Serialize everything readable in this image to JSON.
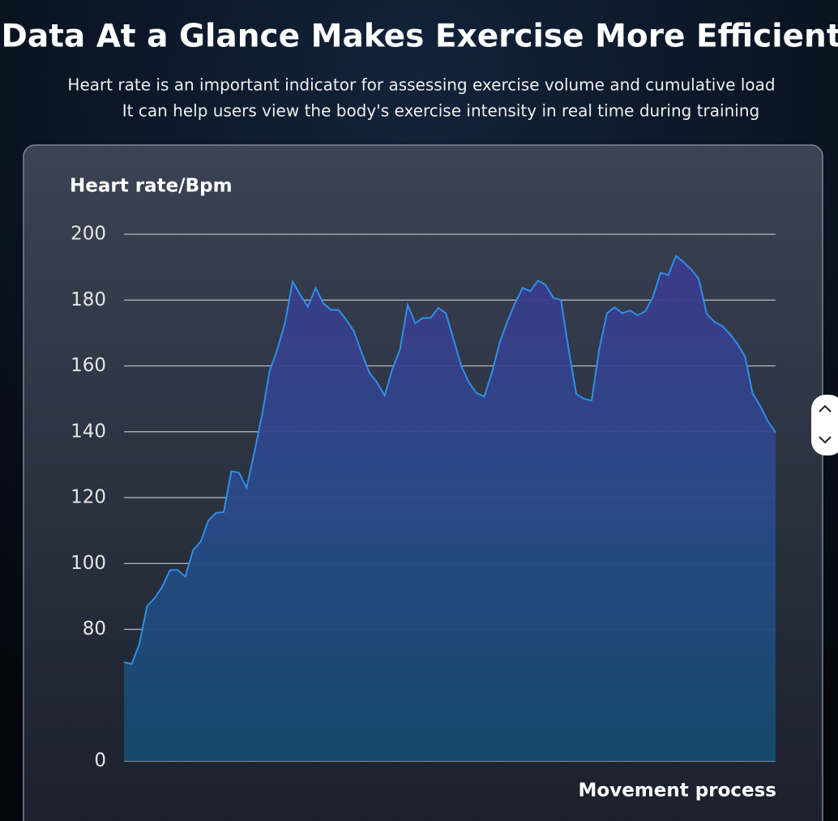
{
  "chart_data": {
    "type": "area",
    "title": "Data At a Glance Makes Exercise More Efficient",
    "subtitle": [
      "Heart rate is an important indicator for assessing exercise volume and cumulative load",
      "It can help users view the body's exercise intensity in real time during training"
    ],
    "ylabel": "Heart rate/Bpm",
    "xlabel": "Movement process",
    "values": [
      60,
      59,
      71,
      87,
      89.5,
      93,
      98,
      98,
      96,
      104,
      106.6,
      113,
      115.4,
      115.6,
      128,
      127.6,
      123,
      133.7,
      145,
      158.5,
      165,
      173,
      185.6,
      181.5,
      178,
      183.7,
      179,
      177,
      177,
      174,
      170.5,
      164,
      158,
      155,
      151,
      159,
      165,
      178.5,
      173,
      174.6,
      174.6,
      177.6,
      176,
      168,
      160,
      155,
      151.7,
      150.7,
      158,
      167,
      173.4,
      179,
      183.7,
      182.7,
      185.9,
      184.6,
      180.7,
      180,
      165,
      151.5,
      150,
      149.5,
      165,
      176,
      177.8,
      176,
      176.8,
      175.4,
      176.6,
      181,
      188.3,
      187.6,
      193.4,
      191.5,
      189.3,
      186.3,
      175.9,
      173.4,
      172.2,
      169.8,
      166.8,
      162.9,
      151.7,
      147.8,
      143.2,
      139.8
    ],
    "color": "#2f8fe8",
    "ylim": [
      0,
      200
    ],
    "yticks": [
      0,
      80,
      100,
      120,
      140,
      160,
      180,
      200
    ],
    "grid": true
  }
}
